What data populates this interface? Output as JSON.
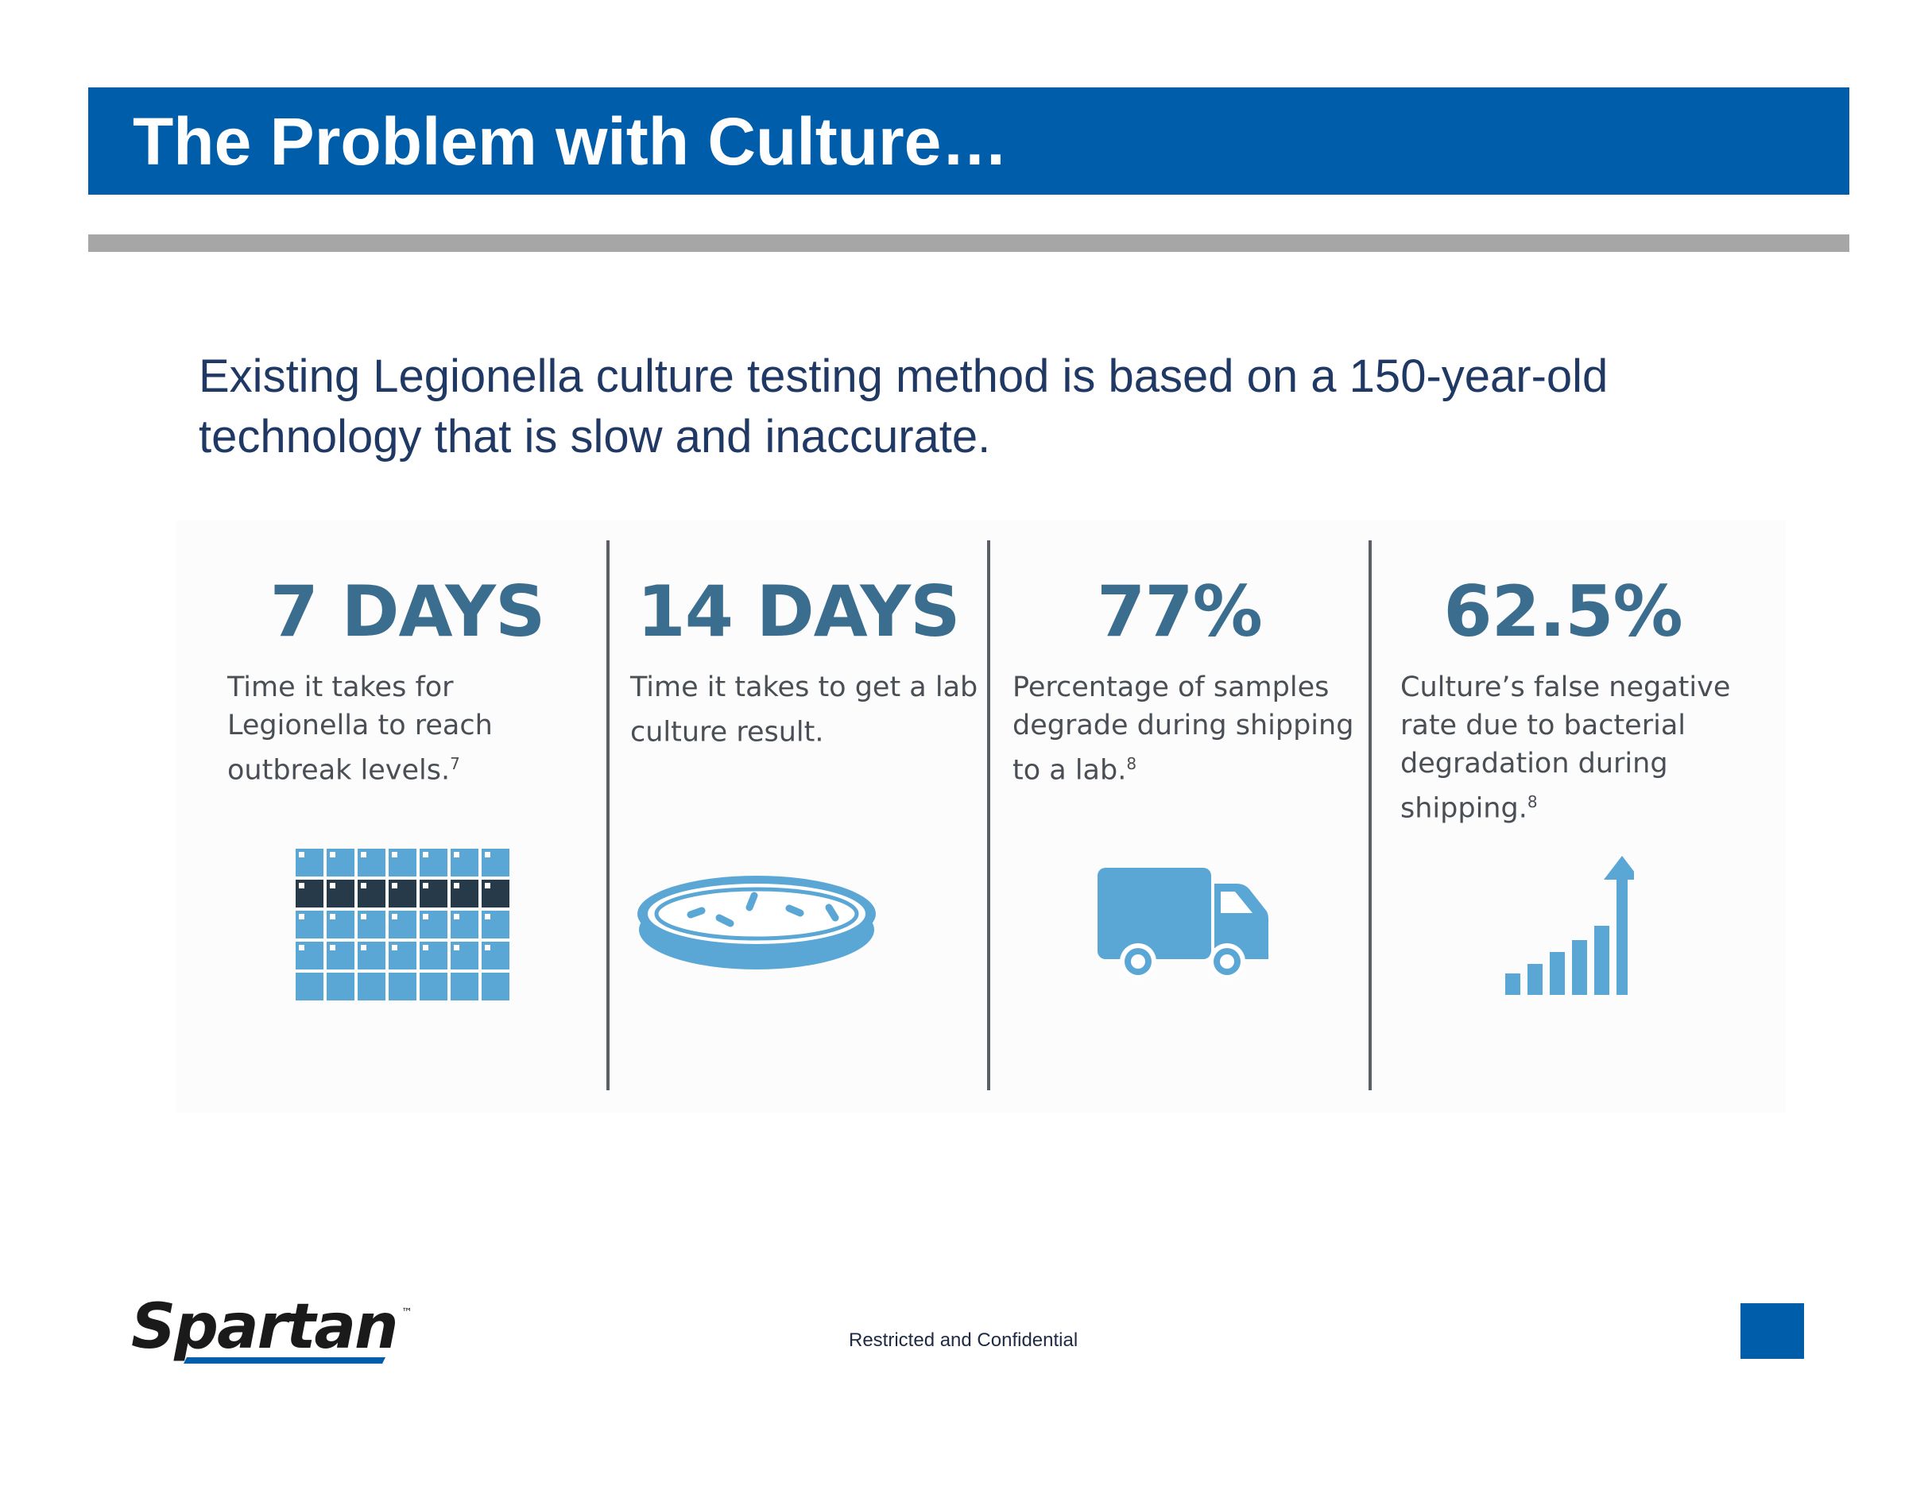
{
  "slide": {
    "title": "The Problem with Culture…",
    "intro": "Existing Legionella culture testing method is based on a 150-year-old technology that is slow and inaccurate."
  },
  "stats": [
    {
      "value": "7 DAYS",
      "description": "Time it takes for Legionella to reach outbreak levels.",
      "footnote": "7",
      "icon": "calendar-icon"
    },
    {
      "value": "14 DAYS",
      "description": "Time it takes to get a lab culture result.",
      "footnote": "",
      "icon": "petri-dish-icon"
    },
    {
      "value": "77%",
      "description": "Percentage of samples degrade during shipping to a lab.",
      "footnote": "8",
      "icon": "delivery-truck-icon"
    },
    {
      "value": "62.5%",
      "description": "Culture’s false negative rate due to bacterial degradation during shipping.",
      "footnote": "8",
      "icon": "rising-bar-chart-icon"
    }
  ],
  "footer": {
    "logo_text": "Spartan",
    "trademark": "™",
    "confidentiality": "Restricted and Confidential"
  },
  "colors": {
    "title_bar": "#005daa",
    "stat_value": "#3b6d8f",
    "icon_light": "#5aa7d6",
    "icon_dark": "#263a4a",
    "intro_text": "#1f3864"
  }
}
